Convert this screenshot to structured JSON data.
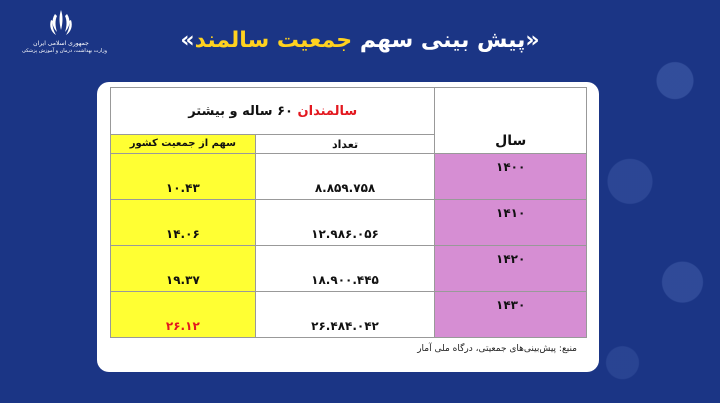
{
  "header": {
    "emblem_line1": "جمهوری اسلامی ایران",
    "emblem_line2": "وزارت بهداشت، درمان و آموزش پزشکی",
    "title_quote_open": "«",
    "title_part1": "پیش بینی سهم ",
    "title_highlight": "جمعیت سالمند",
    "title_quote_close": "»"
  },
  "table": {
    "year_header": "سال",
    "group_header_prefix": "سالمندان",
    "group_header_suffix": " ۶۰ ساله و بیشتر",
    "count_header": "تعداد",
    "share_header": "سهم از جمعیت کشور",
    "rows": [
      {
        "year": "۱۴۰۰",
        "count": "۸.۸۵۹.۷۵۸",
        "share": "۱۰.۴۳"
      },
      {
        "year": "۱۴۱۰",
        "count": "۱۲.۹۸۶.۰۵۶",
        "share": "۱۴.۰۶"
      },
      {
        "year": "۱۴۲۰",
        "count": "۱۸.۹۰۰.۴۴۵",
        "share": "۱۹.۳۷"
      },
      {
        "year": "۱۴۳۰",
        "count": "۲۶.۴۸۴.۰۴۲",
        "share": "۲۶.۱۲"
      }
    ]
  },
  "source": "منبع: پیش‌بینی‌های جمعیتی، درگاه ملی آمار",
  "colors": {
    "background": "#1b3585",
    "title_highlight": "#ffd21f",
    "year_cell": "#d68ed3",
    "share_cell": "#ffff33",
    "accent_red": "#e3181f"
  }
}
